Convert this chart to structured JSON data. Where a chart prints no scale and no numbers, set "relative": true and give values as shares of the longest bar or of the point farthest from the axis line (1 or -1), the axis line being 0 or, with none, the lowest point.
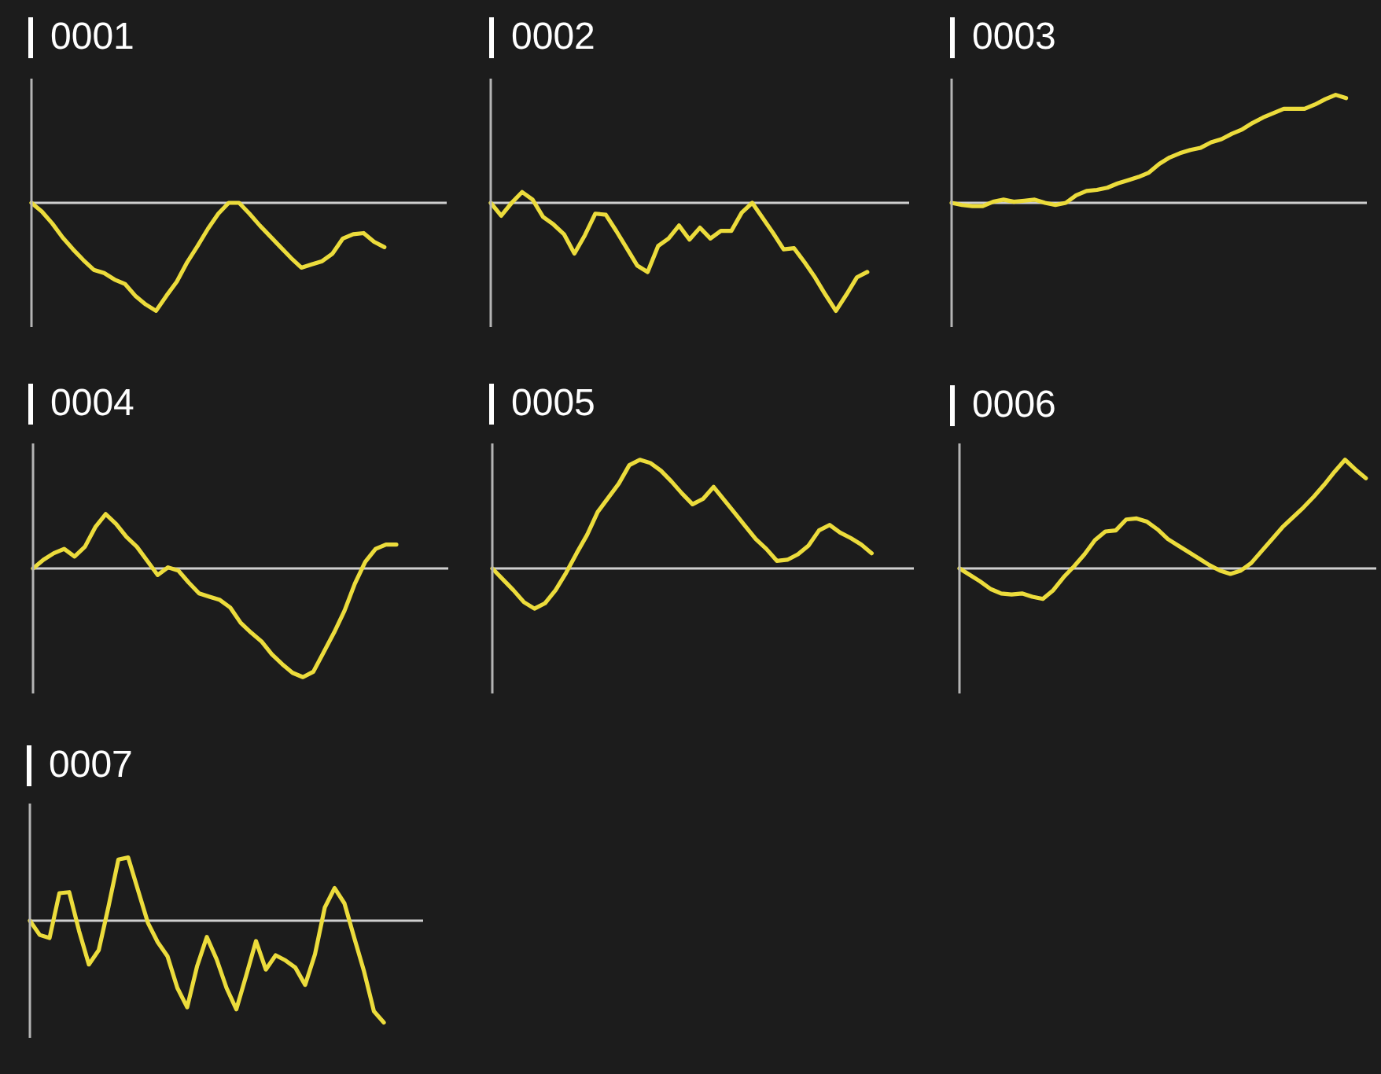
{
  "chart_data": [
    {
      "type": "line",
      "title": "0001",
      "relative": true,
      "color": "#ecdc3c",
      "categories": [
        null,
        null,
        null,
        null,
        null,
        null,
        null,
        null,
        null,
        null,
        null,
        null,
        null,
        null,
        null,
        null,
        null,
        null,
        null,
        null,
        null,
        null,
        null,
        null,
        null,
        null,
        null,
        null,
        null,
        null,
        null,
        null,
        null,
        null,
        null,
        null,
        null,
        null,
        null,
        null,
        null
      ],
      "values": [
        0,
        -0.08,
        -0.19,
        -0.32,
        -0.43,
        -0.53,
        -0.62,
        -0.65,
        -0.71,
        -0.75,
        -0.86,
        -0.94,
        -1,
        -0.86,
        -0.73,
        -0.55,
        -0.4,
        -0.24,
        -0.1,
        0,
        0,
        -0.1,
        -0.21,
        -0.31,
        -0.41,
        -0.51,
        -0.6,
        -0.57,
        -0.54,
        -0.47,
        -0.33,
        -0.29,
        -0.28,
        -0.36,
        -0.41,
        null,
        null,
        null,
        null,
        null,
        null
      ]
    },
    {
      "type": "line",
      "title": "0002",
      "relative": true,
      "color": "#ecdc3c",
      "categories": [
        null,
        null,
        null,
        null,
        null,
        null,
        null,
        null,
        null,
        null,
        null,
        null,
        null,
        null,
        null,
        null,
        null,
        null,
        null,
        null,
        null,
        null,
        null,
        null,
        null,
        null,
        null,
        null,
        null,
        null,
        null,
        null,
        null,
        null,
        null,
        null,
        null,
        null,
        null,
        null,
        null
      ],
      "values": [
        0,
        -0.12,
        0,
        0.1,
        0.03,
        -0.13,
        -0.2,
        -0.29,
        -0.47,
        -0.3,
        -0.1,
        -0.11,
        -0.26,
        -0.42,
        -0.58,
        -0.64,
        -0.4,
        -0.33,
        -0.21,
        -0.34,
        -0.23,
        -0.33,
        -0.26,
        -0.26,
        -0.09,
        0,
        -0.14,
        -0.28,
        -0.43,
        -0.42,
        -0.55,
        -0.69,
        -0.85,
        -1,
        -0.85,
        -0.69,
        -0.64,
        null,
        null,
        null,
        null
      ]
    },
    {
      "type": "line",
      "title": "0003",
      "relative": true,
      "color": "#ecdc3c",
      "categories": [
        null,
        null,
        null,
        null,
        null,
        null,
        null,
        null,
        null,
        null,
        null,
        null,
        null,
        null,
        null,
        null,
        null,
        null,
        null,
        null,
        null,
        null,
        null,
        null,
        null,
        null,
        null,
        null,
        null,
        null,
        null,
        null,
        null,
        null,
        null,
        null,
        null,
        null,
        null,
        null,
        null
      ],
      "values": [
        0,
        -0.02,
        -0.03,
        -0.03,
        0.01,
        0.03,
        0.01,
        0.02,
        0.03,
        0,
        -0.02,
        0,
        0.07,
        0.11,
        0.12,
        0.14,
        0.18,
        0.21,
        0.24,
        0.28,
        0.36,
        0.42,
        0.46,
        0.49,
        0.51,
        0.56,
        0.59,
        0.64,
        0.68,
        0.74,
        0.79,
        0.83,
        0.87,
        0.87,
        0.87,
        0.91,
        0.96,
        1,
        0.97,
        null,
        null
      ]
    },
    {
      "type": "line",
      "title": "0004",
      "relative": true,
      "color": "#ecdc3c",
      "categories": [
        null,
        null,
        null,
        null,
        null,
        null,
        null,
        null,
        null,
        null,
        null,
        null,
        null,
        null,
        null,
        null,
        null,
        null,
        null,
        null,
        null,
        null,
        null,
        null,
        null,
        null,
        null,
        null,
        null,
        null,
        null,
        null,
        null,
        null,
        null,
        null,
        null,
        null,
        null,
        null,
        null
      ],
      "values": [
        0,
        0.08,
        0.14,
        0.18,
        0.11,
        0.2,
        0.38,
        0.5,
        0.41,
        0.29,
        0.2,
        0.07,
        -0.06,
        0.01,
        -0.02,
        -0.13,
        -0.23,
        -0.26,
        -0.29,
        -0.36,
        -0.5,
        -0.59,
        -0.67,
        -0.79,
        -0.88,
        -0.96,
        -1,
        -0.95,
        -0.77,
        -0.59,
        -0.39,
        -0.14,
        0.06,
        0.18,
        0.22,
        0.22,
        null,
        null,
        null,
        null,
        null
      ]
    },
    {
      "type": "line",
      "title": "0005",
      "relative": true,
      "color": "#ecdc3c",
      "categories": [
        null,
        null,
        null,
        null,
        null,
        null,
        null,
        null,
        null,
        null,
        null,
        null,
        null,
        null,
        null,
        null,
        null,
        null,
        null,
        null,
        null,
        null,
        null,
        null,
        null,
        null,
        null,
        null,
        null,
        null,
        null,
        null,
        null,
        null,
        null,
        null,
        null,
        null,
        null,
        null,
        null
      ],
      "values": [
        0,
        -0.1,
        -0.2,
        -0.31,
        -0.37,
        -0.32,
        -0.2,
        -0.04,
        0.14,
        0.31,
        0.52,
        0.65,
        0.78,
        0.95,
        1,
        0.97,
        0.9,
        0.8,
        0.69,
        0.59,
        0.64,
        0.75,
        0.63,
        0.51,
        0.39,
        0.27,
        0.18,
        0.07,
        0.08,
        0.13,
        0.21,
        0.35,
        0.4,
        0.33,
        0.28,
        0.22,
        0.14,
        null,
        null,
        null,
        null
      ]
    },
    {
      "type": "line",
      "title": "0006",
      "relative": true,
      "color": "#ecdc3c",
      "categories": [
        null,
        null,
        null,
        null,
        null,
        null,
        null,
        null,
        null,
        null,
        null,
        null,
        null,
        null,
        null,
        null,
        null,
        null,
        null,
        null,
        null,
        null,
        null,
        null,
        null,
        null,
        null,
        null,
        null,
        null,
        null,
        null,
        null,
        null,
        null,
        null,
        null,
        null,
        null,
        null,
        null
      ],
      "values": [
        0,
        -0.06,
        -0.12,
        -0.19,
        -0.23,
        -0.24,
        -0.23,
        -0.26,
        -0.28,
        -0.2,
        -0.08,
        0.02,
        0.13,
        0.26,
        0.34,
        0.35,
        0.45,
        0.46,
        0.43,
        0.36,
        0.27,
        0.21,
        0.15,
        0.09,
        0.03,
        -0.02,
        -0.05,
        -0.02,
        0.05,
        0.16,
        0.27,
        0.38,
        0.47,
        0.56,
        0.66,
        0.77,
        0.89,
        1,
        0.91,
        0.83,
        null
      ]
    },
    {
      "type": "line",
      "title": "0007",
      "relative": true,
      "color": "#ecdc3c",
      "categories": [
        null,
        null,
        null,
        null,
        null,
        null,
        null,
        null,
        null,
        null,
        null,
        null,
        null,
        null,
        null,
        null,
        null,
        null,
        null,
        null,
        null,
        null,
        null,
        null,
        null,
        null,
        null,
        null,
        null,
        null,
        null,
        null,
        null,
        null,
        null,
        null,
        null,
        null,
        null,
        null,
        null
      ],
      "values": [
        0,
        -0.14,
        -0.17,
        0.27,
        0.28,
        -0.1,
        -0.43,
        -0.29,
        0.14,
        0.6,
        0.62,
        0.3,
        -0.02,
        -0.21,
        -0.35,
        -0.66,
        -0.85,
        -0.45,
        -0.16,
        -0.38,
        -0.66,
        -0.87,
        -0.54,
        -0.2,
        -0.48,
        -0.34,
        -0.39,
        -0.46,
        -0.63,
        -0.33,
        0.13,
        0.32,
        0.17,
        -0.17,
        -0.5,
        -0.89,
        -1,
        null,
        null,
        null,
        null
      ]
    }
  ]
}
